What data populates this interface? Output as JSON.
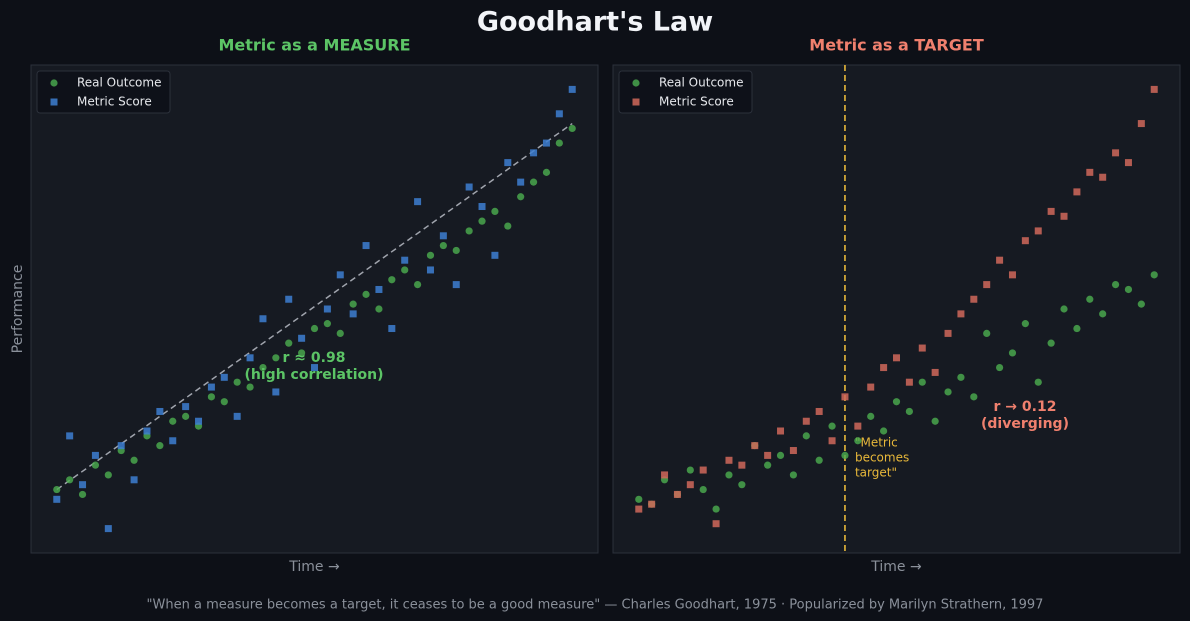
{
  "title": "Goodhart's Law",
  "caption": "\"When a measure becomes a target, it ceases to be a good measure\" — Charles Goodhart, 1975  ·  Popularized by Marilyn Strathern, 1997",
  "chart_data": [
    {
      "type": "scatter",
      "title": "Metric as a MEASURE",
      "title_color": "#5cc466",
      "xlabel": "Time →",
      "ylabel": "Performance",
      "xlim": [
        -5,
        105
      ],
      "ylim": [
        0,
        100
      ],
      "legend": "upper left",
      "x": [
        0,
        2.5,
        5,
        7.5,
        10,
        12.5,
        15,
        17.5,
        20,
        22.5,
        25,
        27.5,
        30,
        32.5,
        35,
        37.5,
        40,
        42.5,
        45,
        47.5,
        50,
        52.5,
        55,
        57.5,
        60,
        62.5,
        65,
        67.5,
        70,
        72.5,
        75,
        77.5,
        80,
        82.5,
        85,
        87.5,
        90,
        92.5,
        95,
        97.5,
        100
      ],
      "series": [
        {
          "name": "Real Outcome",
          "color": "#4caf50",
          "marker": "circle",
          "values": [
            13,
            15,
            12,
            18,
            16,
            21,
            19,
            24,
            22,
            27,
            28,
            26,
            32,
            31,
            35,
            34,
            38,
            40,
            43,
            41,
            46,
            47,
            45,
            51,
            53,
            50,
            56,
            58,
            55,
            61,
            63,
            62,
            66,
            68,
            70,
            67,
            73,
            76,
            78,
            84,
            87
          ]
        },
        {
          "name": "Metric Score",
          "color": "#3d7fd1",
          "marker": "square",
          "values": [
            11,
            24,
            14,
            20,
            5,
            22,
            15,
            25,
            29,
            23,
            30,
            27,
            34,
            36,
            28,
            40,
            48,
            33,
            52,
            44,
            38,
            50,
            57,
            49,
            63,
            54,
            46,
            60,
            72,
            58,
            65,
            55,
            75,
            71,
            61,
            80,
            76,
            82,
            84,
            90,
            95
          ]
        }
      ],
      "trendline": {
        "x": [
          0,
          100
        ],
        "y": [
          13,
          88
        ]
      },
      "annotation": {
        "lines": [
          "r ≈ 0.98",
          "(high correlation)"
        ],
        "color": "#5cc466"
      }
    },
    {
      "type": "scatter",
      "title": "Metric as a TARGET",
      "title_color": "#f0806e",
      "xlabel": "Time →",
      "xlim": [
        -5,
        105
      ],
      "ylim": [
        0,
        100
      ],
      "legend": "upper left",
      "x": [
        0,
        2.5,
        5,
        7.5,
        10,
        12.5,
        15,
        17.5,
        20,
        22.5,
        25,
        27.5,
        30,
        32.5,
        35,
        37.5,
        40,
        42.5,
        45,
        47.5,
        50,
        52.5,
        55,
        57.5,
        60,
        62.5,
        65,
        67.5,
        70,
        72.5,
        75,
        77.5,
        80,
        82.5,
        85,
        87.5,
        90,
        92.5,
        95,
        97.5,
        100
      ],
      "series": [
        {
          "name": "Real Outcome",
          "color": "#4caf50",
          "marker": "circle",
          "values": [
            11,
            10,
            15,
            12,
            17,
            13,
            9,
            16,
            14,
            22,
            18,
            20,
            16,
            24,
            19,
            26,
            20,
            23,
            28,
            25,
            31,
            29,
            35,
            27,
            33,
            36,
            32,
            45,
            38,
            41,
            47,
            35,
            43,
            50,
            46,
            52,
            49,
            55,
            54,
            51,
            57
          ]
        },
        {
          "name": "Metric Score",
          "color": "#d0685a",
          "marker": "square",
          "values": [
            9,
            10,
            16,
            12,
            14,
            17,
            6,
            19,
            18,
            22,
            20,
            25,
            21,
            27,
            29,
            23,
            32,
            26,
            34,
            38,
            40,
            35,
            42,
            37,
            45,
            49,
            52,
            55,
            60,
            57,
            64,
            66,
            70,
            69,
            74,
            78,
            77,
            82,
            80,
            88,
            95
          ]
        }
      ],
      "vline": {
        "x": 40,
        "color": "#e8b83a",
        "lines": [
          "\"Metric",
          "becomes",
          "target\""
        ]
      },
      "annotation": {
        "lines": [
          "r → 0.12",
          "(diverging)"
        ],
        "color": "#f0806e"
      }
    }
  ]
}
